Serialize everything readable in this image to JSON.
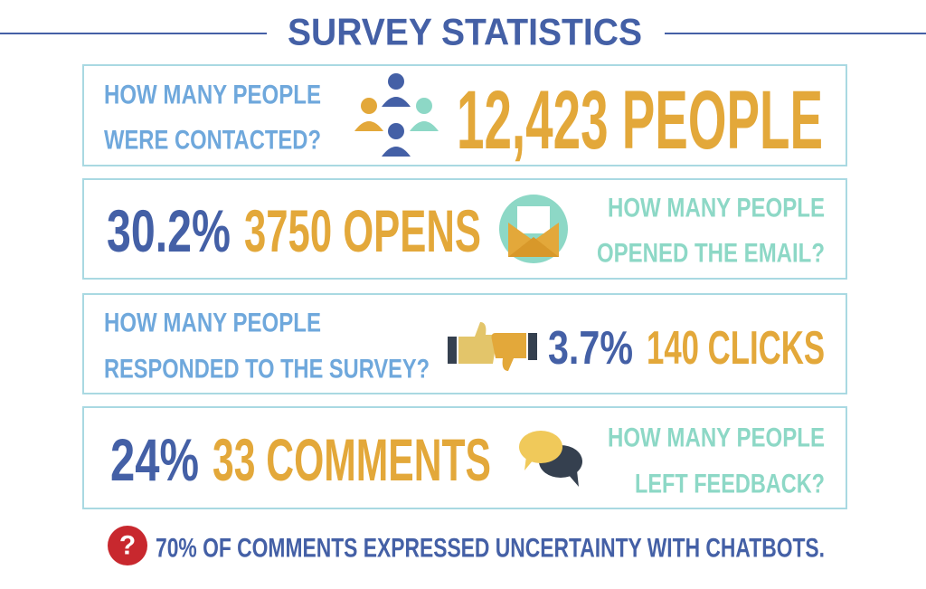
{
  "title": "SURVEY STATISTICS",
  "rows": [
    {
      "question": [
        "HOW MANY PEOPLE",
        "WERE CONTACTED?"
      ],
      "value": "12,423 PEOPLE"
    },
    {
      "percent": "30.2%",
      "value": "3750 OPENS",
      "question": [
        "HOW MANY PEOPLE",
        "OPENED THE EMAIL?"
      ]
    },
    {
      "question": [
        "HOW MANY PEOPLE",
        "RESPONDED TO THE SURVEY?"
      ],
      "percent": "3.7%",
      "value": "140 CLICKS"
    },
    {
      "percent": "24%",
      "value": "33 COMMENTS",
      "question": [
        "HOW MANY PEOPLE",
        "LEFT FEEDBACK?"
      ]
    }
  ],
  "footer": {
    "icon": "?",
    "text": "70% OF COMMENTS EXPRESSED UNCERTAINTY WITH CHATBOTS."
  }
}
